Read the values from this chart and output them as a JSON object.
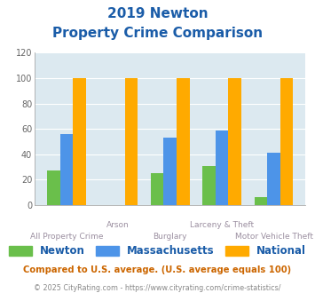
{
  "title_line1": "2019 Newton",
  "title_line2": "Property Crime Comparison",
  "categories": [
    "All Property Crime",
    "Arson",
    "Burglary",
    "Larceny & Theft",
    "Motor Vehicle Theft"
  ],
  "newton": [
    27,
    0,
    25,
    31,
    6
  ],
  "massachusetts": [
    56,
    0,
    53,
    59,
    41
  ],
  "national": [
    100,
    100,
    100,
    100,
    100
  ],
  "newton_color": "#6abf4b",
  "massachusetts_color": "#4d94e8",
  "national_color": "#ffaa00",
  "ylim": [
    0,
    120
  ],
  "yticks": [
    0,
    20,
    40,
    60,
    80,
    100,
    120
  ],
  "bg_color": "#dce9f0",
  "title_color": "#1a5ca8",
  "xlabel_color": "#9b8fa0",
  "legend_label_color": "#1a5ca8",
  "footer_text": "Compared to U.S. average. (U.S. average equals 100)",
  "footer_color": "#cc6600",
  "credit_text": "© 2025 CityRating.com - https://www.cityrating.com/crime-statistics/",
  "credit_color": "#888888",
  "legend_labels": [
    "Newton",
    "Massachusetts",
    "National"
  ],
  "bar_width": 0.25
}
